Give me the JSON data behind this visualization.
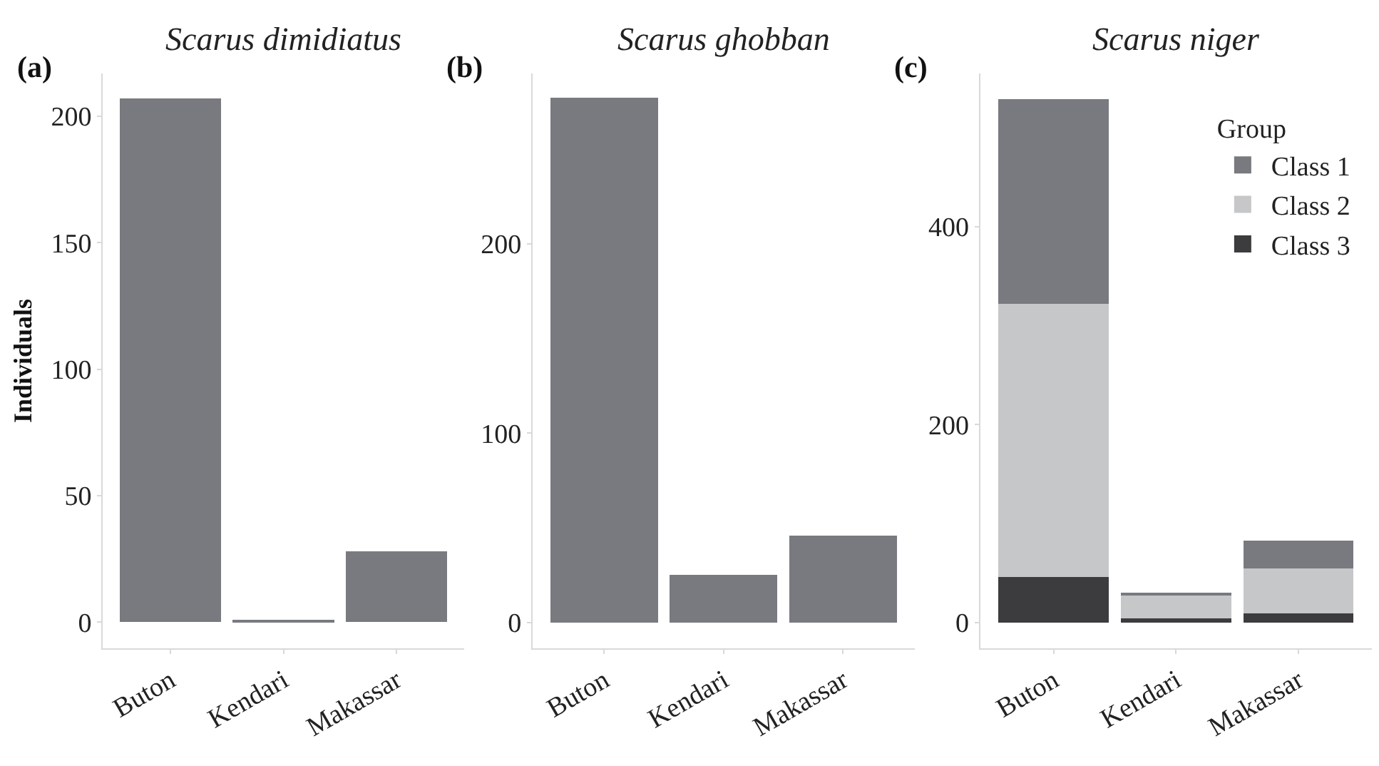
{
  "chart_data": [
    {
      "type": "bar",
      "title": "Scarus dimidiatus",
      "ylabel": "Individuals",
      "annotations": [
        "(a)"
      ],
      "categories": [
        "Buton",
        "Kendari",
        "Makassar"
      ],
      "series": [
        {
          "color": "#797a7f",
          "values": [
            207,
            1,
            28
          ]
        }
      ],
      "ylim": [
        -10.4,
        217
      ],
      "yticks": [
        0,
        50,
        100,
        150,
        200
      ]
    },
    {
      "type": "bar",
      "title": "Scarus ghobban",
      "annotations": [
        "(b)"
      ],
      "categories": [
        "Buton",
        "Kendari",
        "Makassar"
      ],
      "series": [
        {
          "color": "#797a7f",
          "values": [
            277,
            25,
            46
          ]
        }
      ],
      "ylim": [
        -13.7,
        290
      ],
      "yticks": [
        0,
        100,
        200
      ]
    },
    {
      "type": "bar",
      "title": "Scarus niger",
      "annotations": [
        "(c)"
      ],
      "categories": [
        "Buton",
        "Kendari",
        "Makassar"
      ],
      "stacked": true,
      "legend_title": "Group",
      "legend": "top right",
      "series": [
        {
          "name": "Class 3",
          "color": "#3c3c3e",
          "values": [
            46,
            4,
            9
          ]
        },
        {
          "name": "Class 2",
          "color": "#c6c7c9",
          "values": [
            276,
            24,
            46
          ]
        },
        {
          "name": "Class 1",
          "color": "#797a7f",
          "values": [
            207,
            1,
            28
          ]
        }
      ],
      "ylim": [
        -26.2,
        555
      ],
      "yticks": [
        0,
        200,
        400
      ]
    }
  ]
}
